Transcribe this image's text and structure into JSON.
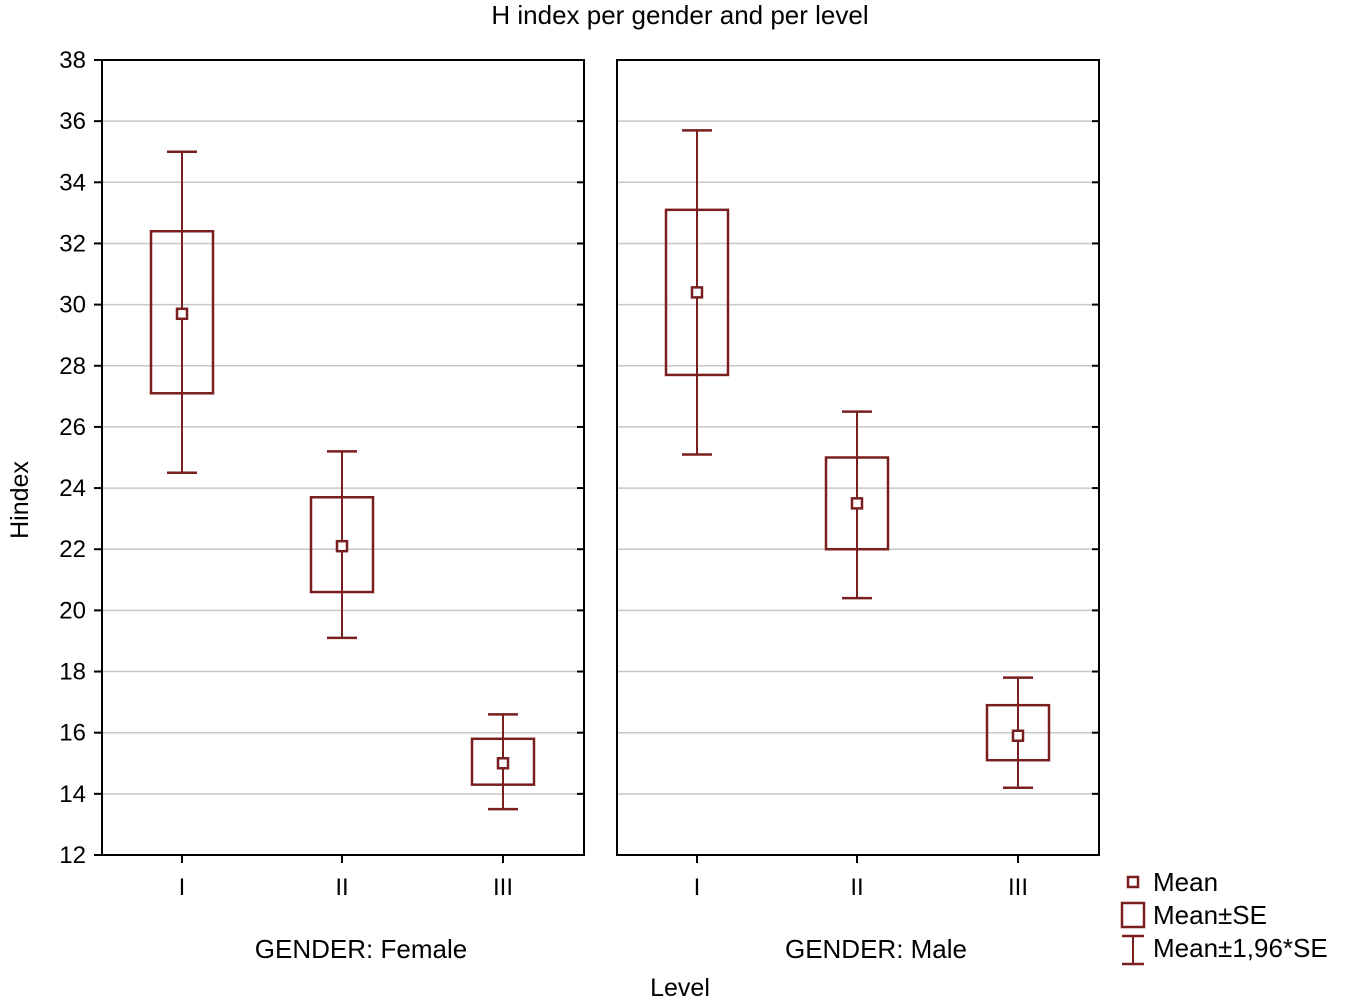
{
  "chart_data": {
    "type": "box",
    "title": "H index per gender and per level",
    "xlabel": "Level",
    "ylabel": "Hindex",
    "ylim": [
      12,
      38
    ],
    "yticks": [
      12,
      14,
      16,
      18,
      20,
      22,
      24,
      26,
      28,
      30,
      32,
      34,
      36,
      38
    ],
    "categories": [
      "I",
      "II",
      "III"
    ],
    "grid": true,
    "legend_position": "bottom-right",
    "colors": {
      "mark": "#7a1f1f",
      "grid": "#c8c8c8",
      "frame": "#000000"
    },
    "panels": [
      {
        "label": "GENDER: Female",
        "points": [
          {
            "category": "I",
            "mean": 29.7,
            "se_low": 27.1,
            "se_high": 32.4,
            "ci_low": 24.5,
            "ci_high": 35.0
          },
          {
            "category": "II",
            "mean": 22.1,
            "se_low": 20.6,
            "se_high": 23.7,
            "ci_low": 19.1,
            "ci_high": 25.2
          },
          {
            "category": "III",
            "mean": 15.0,
            "se_low": 14.3,
            "se_high": 15.8,
            "ci_low": 13.5,
            "ci_high": 16.6
          }
        ]
      },
      {
        "label": "GENDER: Male",
        "points": [
          {
            "category": "I",
            "mean": 30.4,
            "se_low": 27.7,
            "se_high": 33.1,
            "ci_low": 25.1,
            "ci_high": 35.7
          },
          {
            "category": "II",
            "mean": 23.5,
            "se_low": 22.0,
            "se_high": 25.0,
            "ci_low": 20.4,
            "ci_high": 26.5
          },
          {
            "category": "III",
            "mean": 15.9,
            "se_low": 15.1,
            "se_high": 16.9,
            "ci_low": 14.2,
            "ci_high": 17.8
          }
        ]
      }
    ],
    "legend": [
      {
        "label": "Mean",
        "symbol": "small-square-icon"
      },
      {
        "label": "Mean±SE",
        "symbol": "large-square-icon"
      },
      {
        "label": "Mean±1,96*SE",
        "symbol": "whisker-icon"
      }
    ]
  }
}
